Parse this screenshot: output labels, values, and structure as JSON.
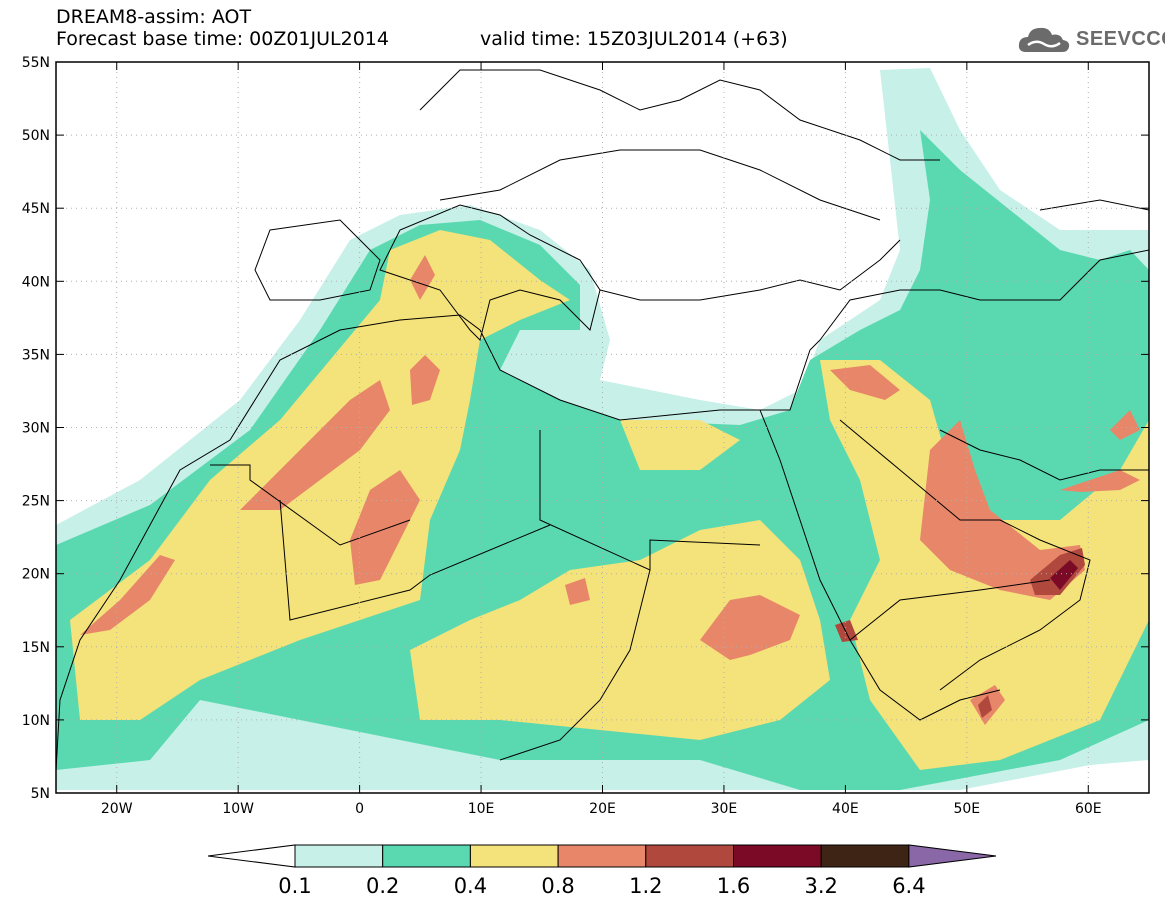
{
  "header": {
    "title_line1": "DREAM8-assim: AOT",
    "title_line2": "Forecast base time: 00Z01JUL2014",
    "valid_time": "valid time: 15Z03JUL2014 (+63)"
  },
  "logo": {
    "text": "SEEVCCC",
    "icon": "cloud-icon"
  },
  "map": {
    "lat_labels": [
      "55N",
      "50N",
      "45N",
      "40N",
      "35N",
      "30N",
      "25N",
      "20N",
      "15N",
      "10N",
      "5N"
    ],
    "lon_labels": [
      "20W",
      "10W",
      "0",
      "10E",
      "20E",
      "30E",
      "40E",
      "50E",
      "60E"
    ],
    "lat_range": [
      5,
      55
    ],
    "lon_range": [
      -25,
      65
    ]
  },
  "colorbar": {
    "levels": [
      "0.1",
      "0.2",
      "0.4",
      "0.8",
      "1.2",
      "1.6",
      "3.2",
      "6.4"
    ],
    "colors": [
      "#ffffff",
      "#c7f0e8",
      "#5ad9b0",
      "#f4e27a",
      "#e8866a",
      "#b0483e",
      "#7a0a26",
      "#3d2415",
      "#8a68a8"
    ]
  }
}
